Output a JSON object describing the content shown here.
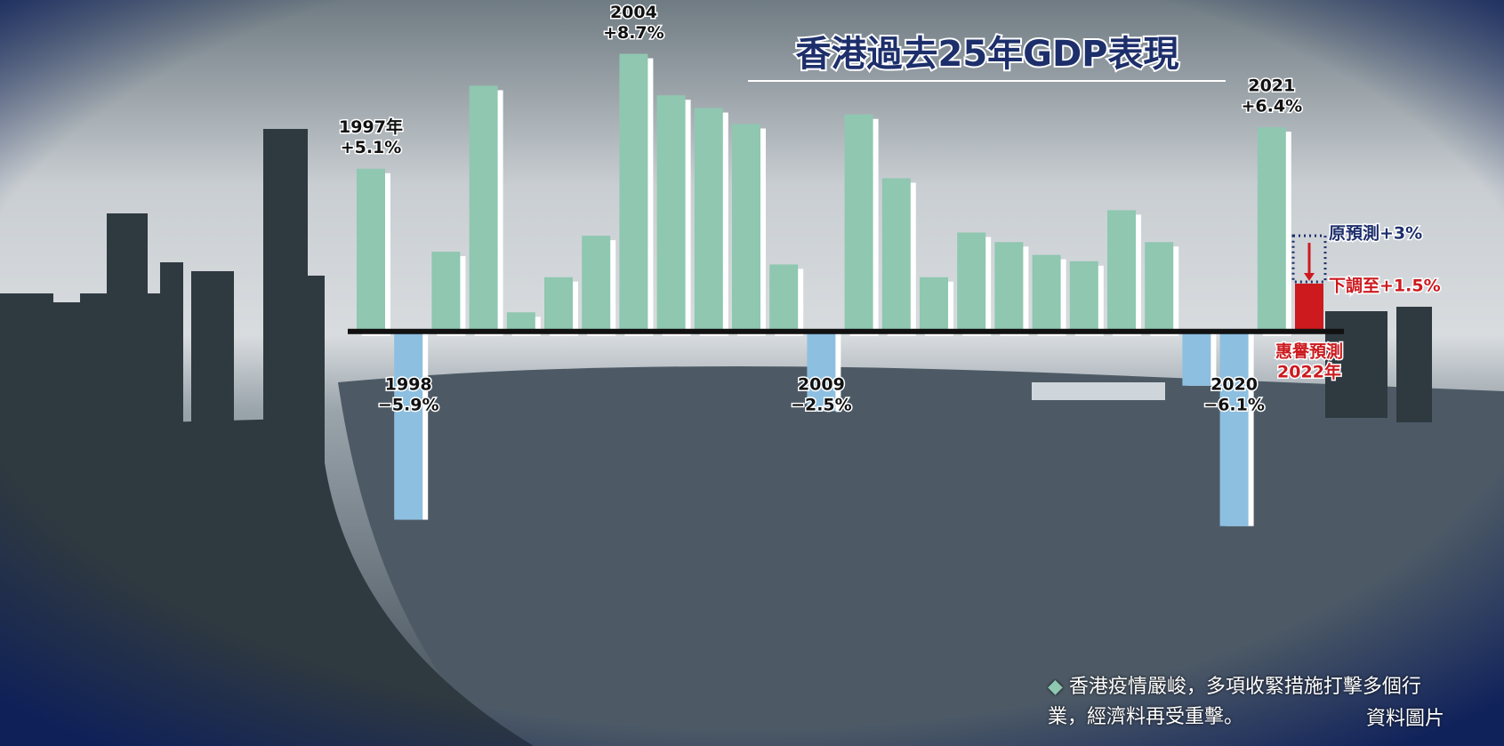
{
  "chart_data": {
    "type": "bar",
    "title": "香港過去25年GDP表現",
    "categories": [
      "1997年",
      "1998",
      null,
      null,
      null,
      null,
      null,
      "2004",
      null,
      null,
      null,
      null,
      "2009",
      null,
      null,
      null,
      null,
      null,
      null,
      null,
      null,
      null,
      null,
      "2020",
      "2021",
      "2022年"
    ],
    "values": [
      5.1,
      -5.9,
      2.5,
      7.7,
      0.6,
      1.7,
      3.0,
      8.7,
      7.4,
      7.0,
      6.5,
      2.1,
      -2.5,
      6.8,
      4.8,
      1.7,
      3.1,
      2.8,
      2.4,
      2.2,
      3.8,
      2.8,
      -1.7,
      -6.1,
      6.4,
      1.5
    ],
    "value_labels": [
      "+5.1%",
      "−5.9%",
      null,
      null,
      null,
      null,
      null,
      "+8.7%",
      null,
      null,
      null,
      null,
      "−2.5%",
      null,
      null,
      null,
      null,
      null,
      null,
      null,
      null,
      null,
      null,
      "−6.1%",
      "+6.4%",
      "下調至+1.5%"
    ],
    "color": "#8fc7b1",
    "negative_color": "#8dbfe0",
    "forecast_color": "#cc1a1f",
    "forecast": {
      "label": "惠譽預測",
      "original": {
        "value": 3,
        "label": "原預測+3%"
      }
    },
    "ylim": [
      -7,
      9.3
    ]
  },
  "caption": "香港疫情嚴峻，多項收緊措施打擊多個行業，經濟料再受重擊。",
  "credit": "資料圖片"
}
